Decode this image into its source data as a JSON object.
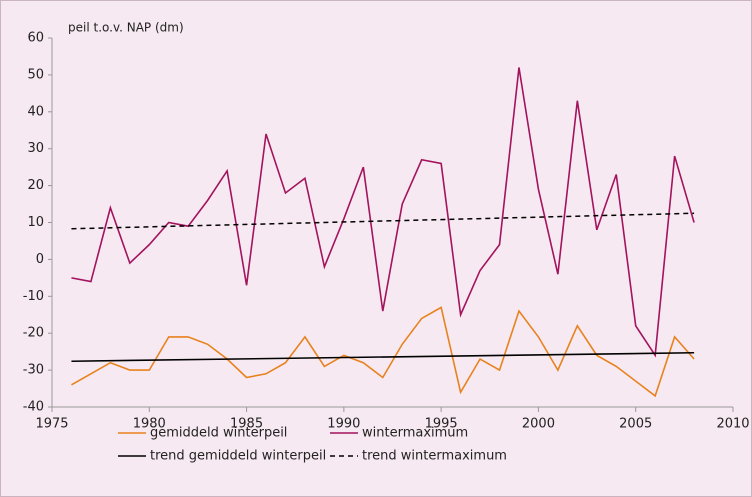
{
  "chart_data": {
    "type": "line",
    "y_label": "peil t.o.v. NAP (dm)",
    "x": [
      1976,
      1977,
      1978,
      1979,
      1980,
      1981,
      1982,
      1983,
      1984,
      1985,
      1986,
      1987,
      1988,
      1989,
      1990,
      1991,
      1992,
      1993,
      1994,
      1995,
      1996,
      1997,
      1998,
      1999,
      2000,
      2001,
      2002,
      2003,
      2004,
      2005,
      2006,
      2007,
      2008
    ],
    "series": [
      {
        "name": "gemiddeld winterpeil",
        "color": "#e8821e",
        "dash": false,
        "values": [
          -34,
          -31,
          -28,
          -30,
          -30,
          -21,
          -21,
          -23,
          -27,
          -32,
          -31,
          -28,
          -21,
          -29,
          -26,
          -28,
          -32,
          -23,
          -16,
          -13,
          -36,
          -27,
          -30,
          -14,
          -21,
          -30,
          -18,
          -26,
          -29,
          -33,
          -37,
          -21,
          -27
        ]
      },
      {
        "name": "wintermaximum",
        "color": "#a3135e",
        "dash": false,
        "values": [
          -5,
          -6,
          14,
          -1,
          4,
          10,
          9,
          16,
          24,
          -7,
          34,
          18,
          22,
          -2,
          11,
          25,
          -14,
          15,
          27,
          26,
          -15,
          -3,
          4,
          52,
          19,
          -4,
          43,
          8,
          23,
          -18,
          -26,
          28,
          10
        ]
      },
      {
        "name": "trend gemiddeld winterpeil",
        "color": "#000000",
        "dash": false,
        "x": [
          1976,
          2008
        ],
        "values": [
          -27.6,
          -25.3
        ]
      },
      {
        "name": "trend wintermaximum",
        "color": "#000000",
        "dash": true,
        "x": [
          1976,
          2008
        ],
        "values": [
          8.3,
          12.5
        ]
      }
    ],
    "xlim": [
      1975,
      2010
    ],
    "xticks": [
      1975,
      1980,
      1985,
      1990,
      1995,
      2000,
      2005,
      2010
    ],
    "ylim": [
      -40,
      60
    ],
    "yticks": [
      -40,
      -30,
      -20,
      -10,
      0,
      10,
      20,
      30,
      40,
      50,
      60
    ],
    "legend": "bottom"
  }
}
